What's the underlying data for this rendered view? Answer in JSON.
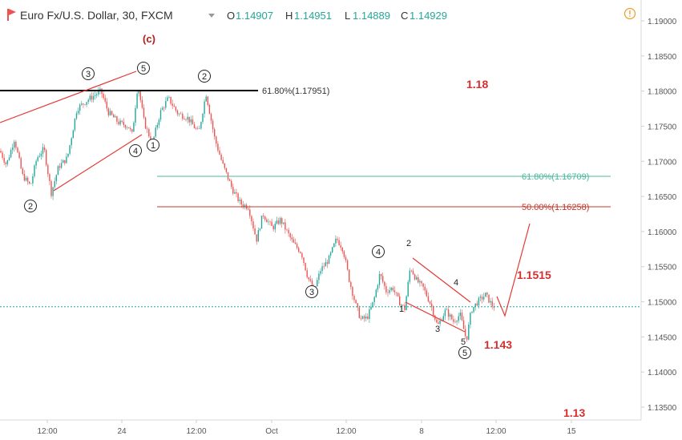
{
  "header": {
    "symbol": "Euro Fx/U.S. Dollar, 30, FXCM",
    "open_label": "O",
    "open": "1.14907",
    "high_label": "H",
    "high": "1.14951",
    "low_label": "L",
    "low": "1.14889",
    "close_label": "C",
    "close": "1.14929",
    "alert_icon": "exclamation-circle-icon",
    "colors": {
      "title": "#333333",
      "ohlc": "#26a69a",
      "alert": "#f0a030"
    }
  },
  "chart_data": {
    "type": "candlestick",
    "x_ticks": [
      "12:00",
      "24",
      "12:00",
      "Oct",
      "12:00",
      "8",
      "12:00",
      "15"
    ],
    "y_ticks": [
      "1.19000",
      "1.18500",
      "1.18000",
      "1.17500",
      "1.17000",
      "1.16500",
      "1.16000",
      "1.15500",
      "1.15000",
      "1.14500",
      "1.14000",
      "1.13500"
    ],
    "y_range": [
      1.1315,
      1.1918
    ],
    "last_price": 1.14929,
    "price_path": [
      [
        0,
        1.1715
      ],
      [
        8,
        1.1695
      ],
      [
        18,
        1.1732
      ],
      [
        28,
        1.168
      ],
      [
        38,
        1.1665
      ],
      [
        46,
        1.1705
      ],
      [
        55,
        1.1718
      ],
      [
        64,
        1.1655
      ],
      [
        73,
        1.1692
      ],
      [
        84,
        1.1705
      ],
      [
        96,
        1.1775
      ],
      [
        110,
        1.1788
      ],
      [
        126,
        1.18
      ],
      [
        135,
        1.177
      ],
      [
        148,
        1.1755
      ],
      [
        160,
        1.175
      ],
      [
        165,
        1.1738
      ],
      [
        172,
        1.181
      ],
      [
        180,
        1.1755
      ],
      [
        190,
        1.1725
      ],
      [
        200,
        1.177
      ],
      [
        210,
        1.179
      ],
      [
        222,
        1.1768
      ],
      [
        234,
        1.1762
      ],
      [
        248,
        1.174
      ],
      [
        257,
        1.1797
      ],
      [
        268,
        1.1732
      ],
      [
        278,
        1.1695
      ],
      [
        290,
        1.166
      ],
      [
        300,
        1.164
      ],
      [
        310,
        1.1635
      ],
      [
        320,
        1.1588
      ],
      [
        328,
        1.1625
      ],
      [
        340,
        1.1605
      ],
      [
        350,
        1.1617
      ],
      [
        358,
        1.16
      ],
      [
        366,
        1.1583
      ],
      [
        376,
        1.157
      ],
      [
        384,
        1.1535
      ],
      [
        392,
        1.1516
      ],
      [
        400,
        1.1545
      ],
      [
        410,
        1.156
      ],
      [
        420,
        1.159
      ],
      [
        428,
        1.1575
      ],
      [
        436,
        1.153
      ],
      [
        444,
        1.1495
      ],
      [
        450,
        1.1475
      ],
      [
        458,
        1.1477
      ],
      [
        466,
        1.15
      ],
      [
        474,
        1.154
      ],
      [
        482,
        1.1515
      ],
      [
        490,
        1.152
      ],
      [
        498,
        1.15
      ],
      [
        505,
        1.149
      ],
      [
        512,
        1.155
      ],
      [
        520,
        1.153
      ],
      [
        528,
        1.152
      ],
      [
        538,
        1.1495
      ],
      [
        546,
        1.1465
      ],
      [
        556,
        1.1488
      ],
      [
        566,
        1.1472
      ],
      [
        574,
        1.1482
      ],
      [
        582,
        1.1445
      ],
      [
        588,
        1.1488
      ],
      [
        596,
        1.15
      ],
      [
        606,
        1.151
      ],
      [
        614,
        1.1495
      ],
      [
        618,
        1.1493
      ]
    ],
    "fib_levels": [
      {
        "label": "61.80%(1.17951)",
        "price": 1.17951,
        "color": "#000000"
      },
      {
        "label": "61.80%(1.16709)",
        "price": 1.16709,
        "color": "#4cb89a"
      },
      {
        "label": "50.00%(1.16258)",
        "price": 1.16258,
        "color": "#c0392b"
      }
    ],
    "wave_labels_circled": [
      "2",
      "3",
      "4",
      "5",
      "1",
      "2",
      "3",
      "4",
      "5"
    ],
    "wave_labels_plain": [
      "(c)",
      "1",
      "2",
      "3",
      "4",
      "5"
    ],
    "targets": [
      "1.18",
      "1.1515",
      "1.143",
      "1.13"
    ],
    "colors": {
      "up": "#26a69a",
      "down": "#ef5350",
      "trendline": "#e53935",
      "target_text": "#d32f2f",
      "axis_text": "#555555",
      "price_line": "#26a69a"
    }
  }
}
